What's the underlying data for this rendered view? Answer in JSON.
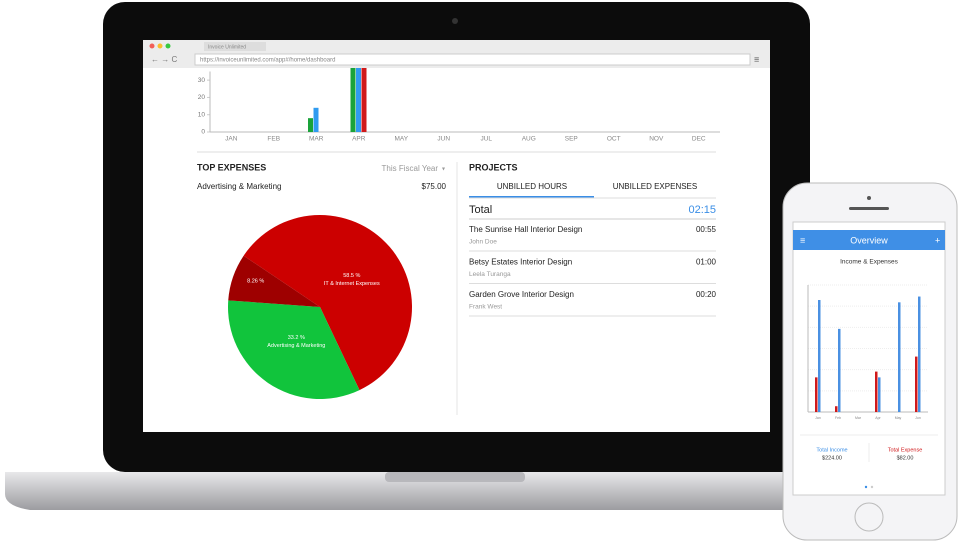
{
  "browser": {
    "tab": "Invoice Unlimited",
    "url": "https://invoiceunlimited.com/app#/home/dashboard"
  },
  "chart_data": [
    {
      "type": "bar",
      "categories": [
        "JAN",
        "FEB",
        "MAR",
        "APR",
        "MAY",
        "JUN",
        "JUL",
        "AUG",
        "SEP",
        "OCT",
        "NOV",
        "DEC"
      ],
      "series": [
        {
          "color": "#1aa33a",
          "values": [
            0,
            0,
            8,
            40,
            0,
            0,
            0,
            0,
            0,
            0,
            0,
            0
          ]
        },
        {
          "color": "#2f9bf0",
          "values": [
            0,
            0,
            14,
            40,
            0,
            0,
            0,
            0,
            0,
            0,
            0,
            0
          ]
        },
        {
          "color": "#d0191b",
          "values": [
            0,
            0,
            0,
            40,
            0,
            0,
            0,
            0,
            0,
            0,
            0,
            0
          ]
        }
      ],
      "ylim": [
        0,
        35
      ],
      "yticks": [
        0,
        10,
        20,
        30
      ]
    },
    {
      "type": "pie",
      "categories": [
        "IT & Internet Expenses",
        "Advertising & Marketing",
        null
      ],
      "values": [
        58.5,
        33.2,
        8.26
      ],
      "value_labels": [
        "58.5 %",
        "33.2 %",
        "8.26 %"
      ],
      "colors": [
        "#cc0000",
        "#11c43c",
        "#9e0000"
      ]
    },
    {
      "type": "bar",
      "title": "Income & Expenses",
      "categories": [
        "Jan",
        "Feb",
        "Mar",
        "Apr",
        "May",
        "Jun"
      ],
      "series": [
        {
          "color": "#d0191b",
          "values": [
            30,
            5,
            0,
            35,
            0,
            48
          ]
        },
        {
          "color": "#4a90e2",
          "values": [
            97,
            72,
            0,
            30,
            95,
            100
          ]
        }
      ],
      "ylim": [
        0,
        110
      ]
    }
  ],
  "expenses": {
    "title": "TOP EXPENSES",
    "period": "This Fiscal Year",
    "item": "Advertising & Marketing",
    "amount": "$75.00"
  },
  "projects": {
    "title": "PROJECTS",
    "tabs": [
      "UNBILLED HOURS",
      "UNBILLED EXPENSES"
    ],
    "total_label": "Total",
    "total": "02:15",
    "rows": [
      {
        "name": "The Sunrise Hall Interior Design",
        "client": "John Doe",
        "time": "00:55"
      },
      {
        "name": "Betsy Estates Interior Design",
        "client": "Leela Turanga",
        "time": "01:00"
      },
      {
        "name": "Garden Grove Interior Design",
        "client": "Frank West",
        "time": "00:20"
      }
    ]
  },
  "phone": {
    "title": "Overview",
    "income_label": "Total Income",
    "income": "$224.00",
    "expense_label": "Total Expense",
    "expense": "$82.00"
  }
}
